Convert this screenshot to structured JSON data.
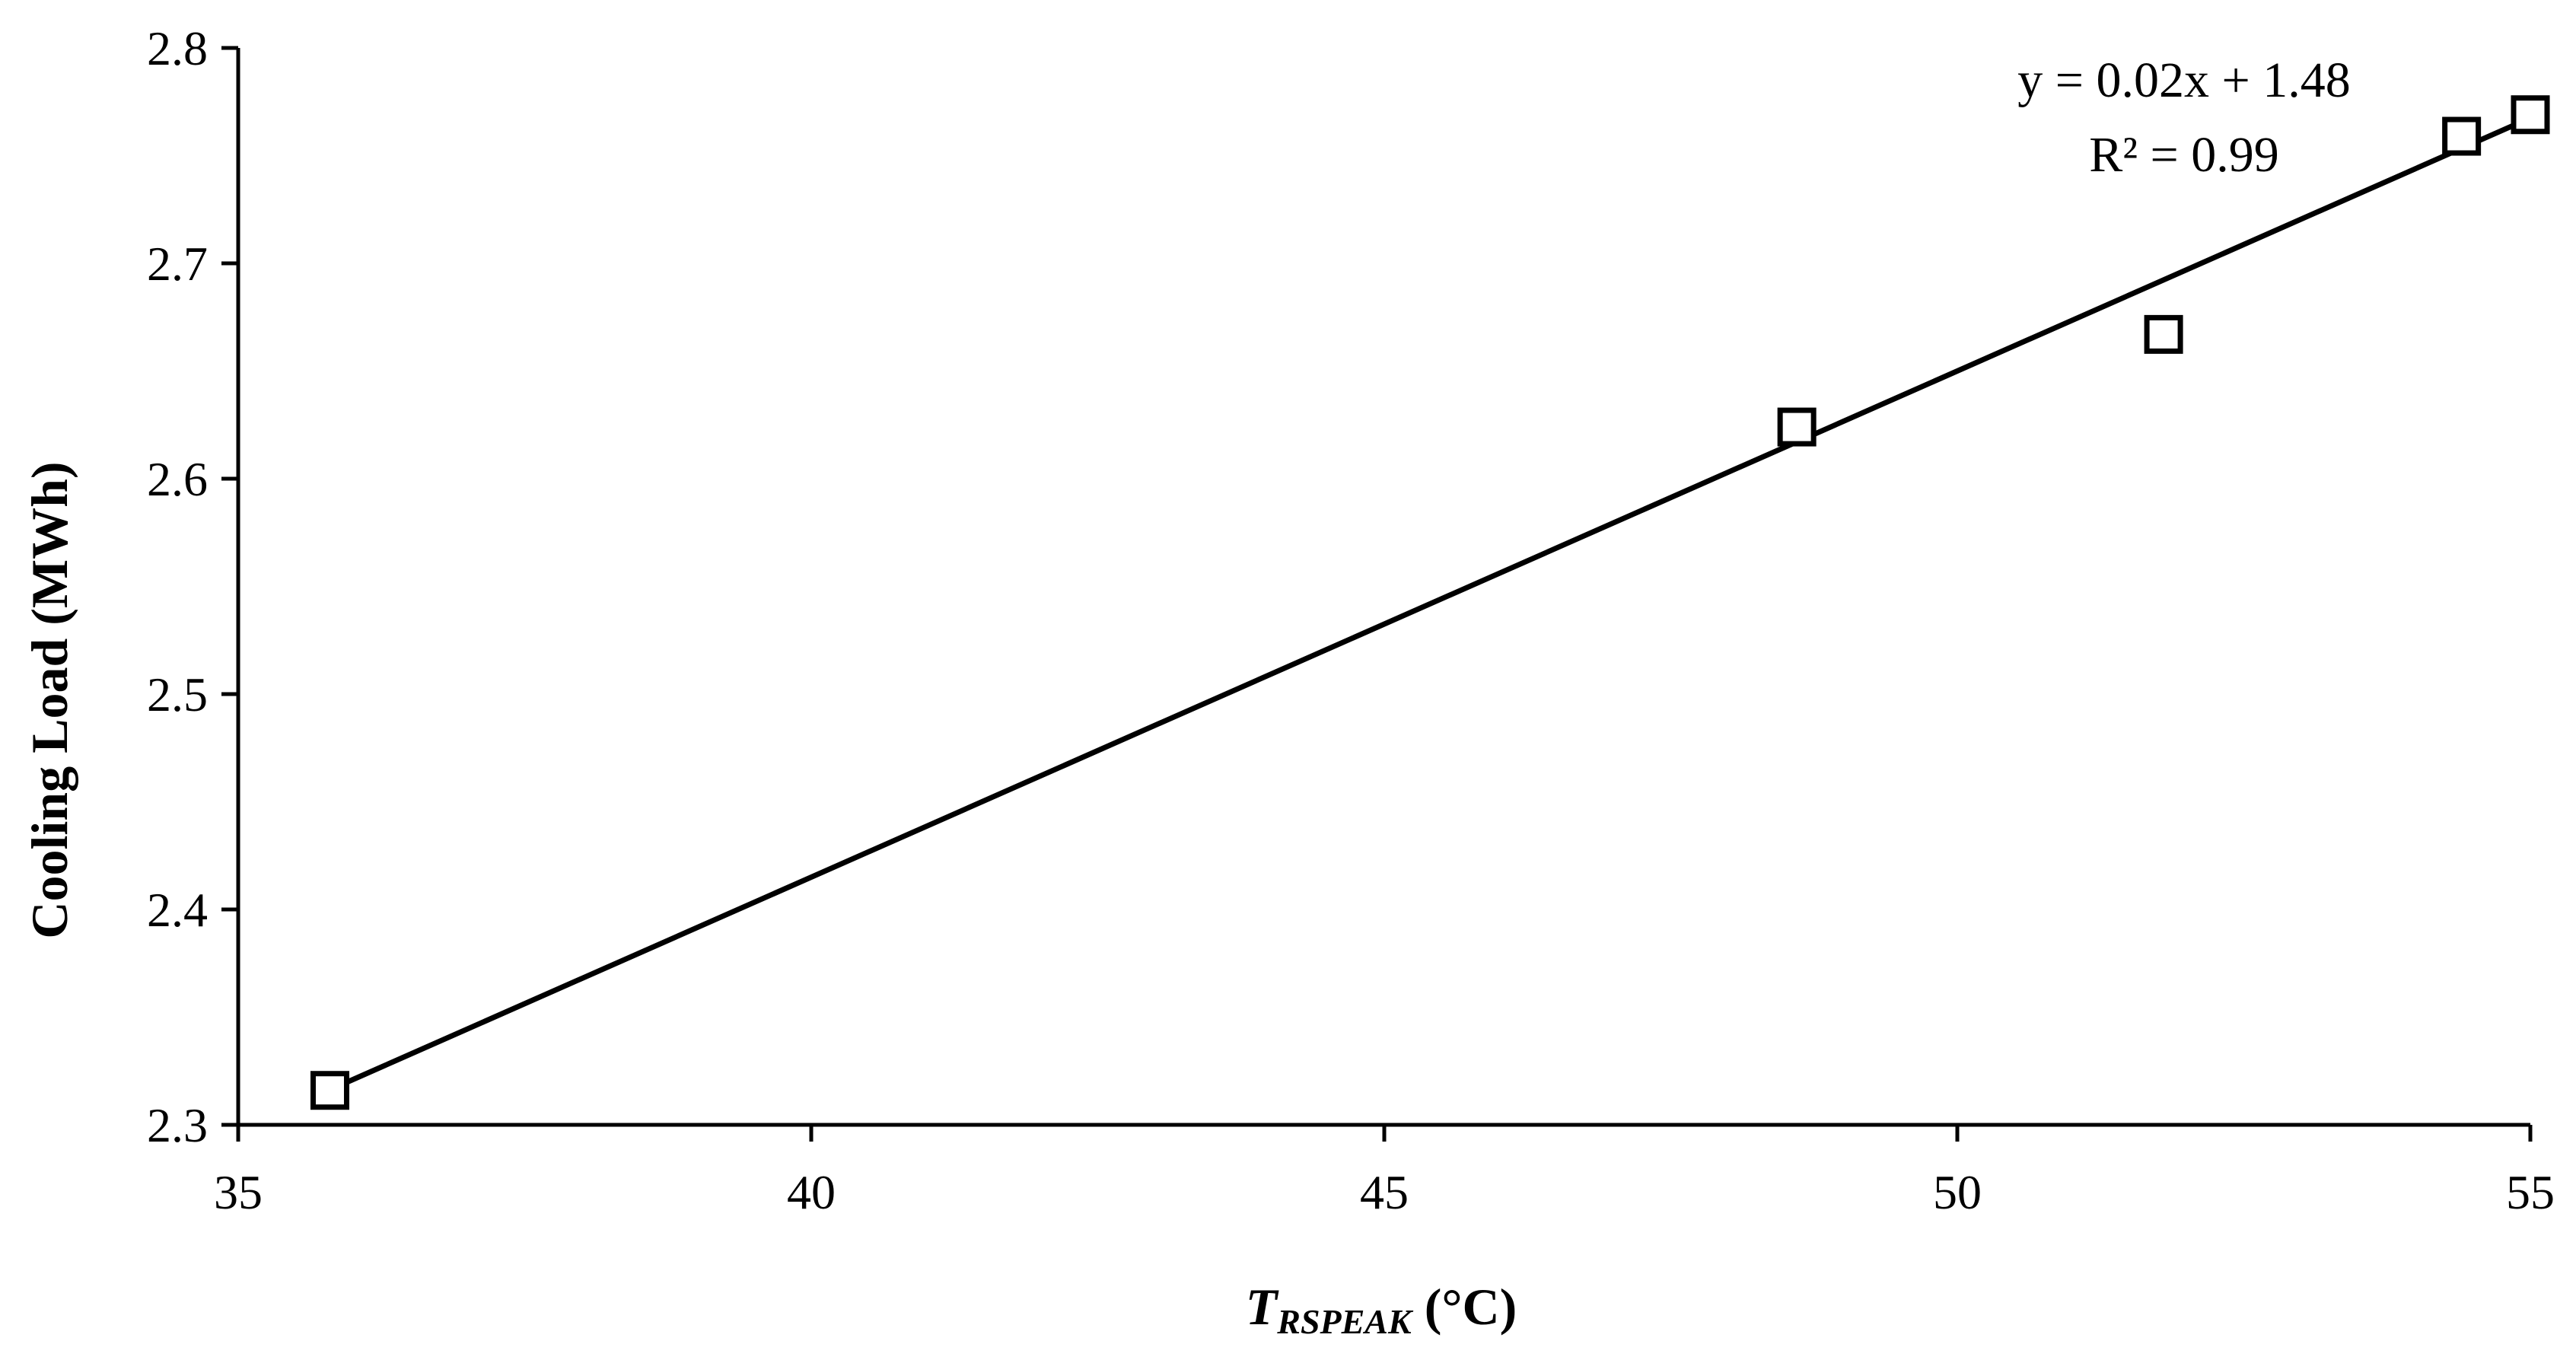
{
  "chart_data": {
    "type": "scatter",
    "xlabel": {
      "main": "T",
      "subscript": "RSPEAK",
      "unit": " (°C)"
    },
    "ylabel": "Cooling Load (MWh)",
    "xlim": [
      35,
      55
    ],
    "ylim": [
      2.3,
      2.8
    ],
    "xticks": [
      "35",
      "40",
      "45",
      "50",
      "55"
    ],
    "yticks": [
      "2.3",
      "2.4",
      "2.5",
      "2.6",
      "2.7",
      "2.8"
    ],
    "points": [
      {
        "x": 35.8,
        "y": 2.316
      },
      {
        "x": 48.6,
        "y": 2.624
      },
      {
        "x": 51.8,
        "y": 2.667
      },
      {
        "x": 54.4,
        "y": 2.759
      },
      {
        "x": 55.0,
        "y": 2.769
      }
    ],
    "trendline": {
      "slope": 0.0235,
      "intercept": 1.475,
      "x_range": [
        35.8,
        55.0
      ],
      "equation_text": "y = 0.02x + 1.48",
      "r2_text": "R² = 0.99"
    },
    "grid": false,
    "legend": "none",
    "marker": "open-square",
    "colors": {
      "line": "#000000",
      "marker_stroke": "#000000",
      "marker_fill": "#ffffff"
    }
  }
}
